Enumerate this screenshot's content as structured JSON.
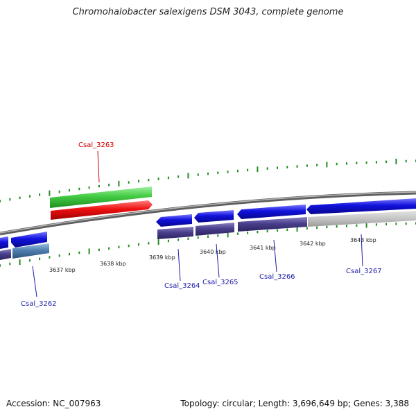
{
  "title": "Chromohalobacter salexigens DSM 3043, complete genome",
  "footer": {
    "accession": "Accession: NC_007963",
    "summary": "Topology: circular; Length: 3,696,649 bp; Genes: 3,388"
  },
  "colors": {
    "backbone": "#8c8c8c",
    "tick": "#228b22",
    "highlight_label": "#cc0000",
    "gene_label": "#1a1aa8",
    "forward_highlight": "#44cc44",
    "reverse_highlight": "#ee1111",
    "reverse_gene": "#1111dd",
    "translation": "#4a3f8c"
  },
  "scale": {
    "unit": "kbp",
    "ticks": [
      {
        "label": "3637 kbp"
      },
      {
        "label": "3638 kbp"
      },
      {
        "label": "3639 kbp"
      },
      {
        "label": "3640 kbp"
      },
      {
        "label": "3641 kbp"
      },
      {
        "label": "3642 kbp"
      },
      {
        "label": "3643 kbp"
      }
    ]
  },
  "genes": [
    {
      "name": "Csal_3262",
      "highlighted": false
    },
    {
      "name": "Csal_3263",
      "highlighted": true
    },
    {
      "name": "Csal_3264",
      "highlighted": false
    },
    {
      "name": "Csal_3265",
      "highlighted": false
    },
    {
      "name": "Csal_3266",
      "highlighted": false
    },
    {
      "name": "Csal_3267",
      "highlighted": false
    }
  ]
}
